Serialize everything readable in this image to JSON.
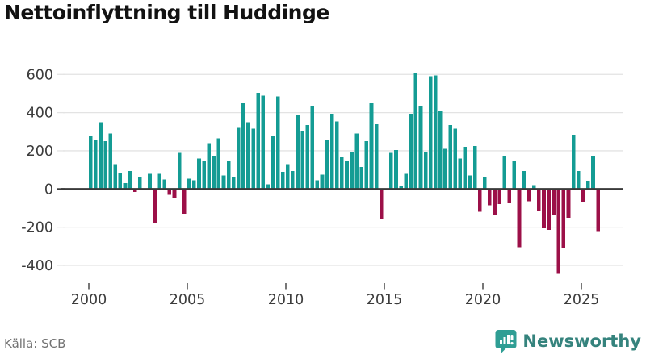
{
  "title": "Nettoinflyttning till Huddinge",
  "source": "Källa: SCB",
  "brand": {
    "name": "Newsworthy",
    "color": "#2f9e94",
    "text_color": "#35837d"
  },
  "colors": {
    "positive_bar": "#149c94",
    "negative_bar": "#9c1048",
    "grid": "#e3e3e3",
    "zero_line": "#3a3a3a",
    "axis_text": "#3c3c3c",
    "tick_mark": "#555555",
    "source_text": "#737373",
    "background": "#ffffff"
  },
  "chart_data": {
    "type": "bar",
    "title": "Nettoinflyttning till Huddinge",
    "xlabel": "",
    "ylabel": "",
    "frequency": "quarterly",
    "x_start": "2000-Q1",
    "x_end": "2025-Q4",
    "x_tick_labels": [
      "2000",
      "2005",
      "2010",
      "2015",
      "2020",
      "2025"
    ],
    "y_ticks": [
      600,
      400,
      200,
      0,
      -200,
      -400
    ],
    "y_tick_labels": [
      "600",
      "400",
      "200",
      "0",
      "-200",
      "-400"
    ],
    "ylim": [
      -480,
      660
    ],
    "grid": true,
    "legend": false,
    "series": [
      {
        "name": "Nettoinflyttning",
        "values": [
          275,
          255,
          350,
          250,
          290,
          130,
          85,
          30,
          95,
          -15,
          65,
          0,
          80,
          -180,
          80,
          50,
          -30,
          -50,
          190,
          -130,
          55,
          45,
          160,
          145,
          240,
          170,
          265,
          70,
          150,
          65,
          320,
          450,
          350,
          315,
          505,
          490,
          25,
          275,
          485,
          90,
          130,
          95,
          390,
          305,
          335,
          435,
          45,
          75,
          255,
          395,
          355,
          165,
          145,
          195,
          290,
          115,
          250,
          450,
          340,
          -160,
          0,
          190,
          205,
          15,
          80,
          395,
          605,
          435,
          195,
          590,
          595,
          410,
          210,
          335,
          315,
          160,
          220,
          70,
          225,
          -120,
          60,
          -85,
          -135,
          -80,
          170,
          -75,
          145,
          -305,
          95,
          -65,
          20,
          -115,
          -205,
          -215,
          -135,
          -445,
          -310,
          -150,
          285,
          95,
          -70,
          40,
          175,
          -220
        ]
      }
    ]
  }
}
